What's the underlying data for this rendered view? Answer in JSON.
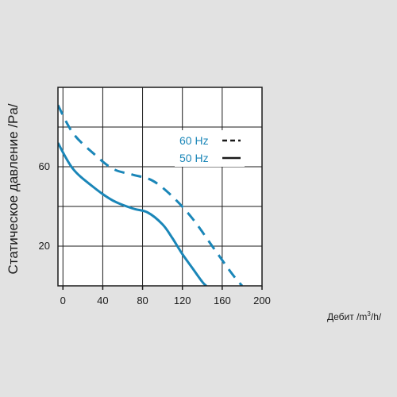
{
  "chart_data": {
    "type": "line",
    "ylabel": "Статическое давление /Pa/",
    "xlabel_main": "Дебит /m",
    "xlabel_sup": "3",
    "xlabel_end": "/h/",
    "xlim": [
      -5,
      200
    ],
    "ylim": [
      0,
      100
    ],
    "x_ticks": [
      "0",
      "40",
      "80",
      "120",
      "160",
      "200"
    ],
    "y_ticks": [
      "20",
      "60"
    ],
    "grid": true,
    "legend_position": "inside-right",
    "colors": {
      "line": "#1a86b8",
      "text": "#1a86b8",
      "legend_mark": "#1a1a1a",
      "plot_bg": "#ffffff"
    },
    "series": [
      {
        "name": "60 Hz",
        "style": "dashed",
        "x": [
          -5,
          10,
          30,
          50,
          70,
          90,
          110,
          130,
          150,
          170,
          180
        ],
        "y": [
          91,
          77,
          67,
          59,
          56,
          53,
          45,
          34,
          20,
          6,
          0
        ]
      },
      {
        "name": "50 Hz",
        "style": "solid",
        "x": [
          -5,
          10,
          30,
          50,
          70,
          85,
          100,
          110,
          120,
          130,
          140,
          144
        ],
        "y": [
          72,
          59,
          50,
          43,
          39,
          37,
          31,
          24,
          16,
          9,
          2,
          0
        ]
      }
    ]
  }
}
